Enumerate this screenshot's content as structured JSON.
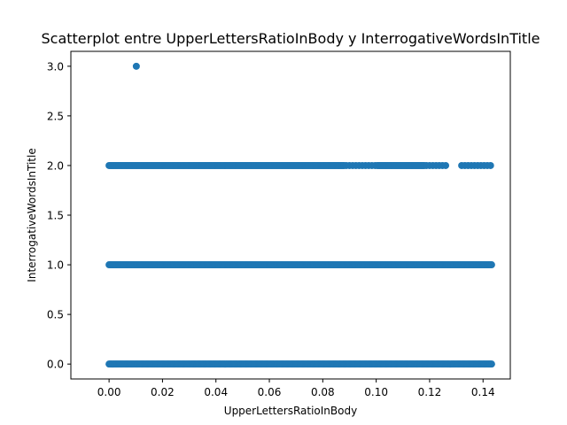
{
  "chart_data": {
    "type": "scatter",
    "title": "Scatterplot entre UpperLettersRatioInBody y InterrogativeWordsInTitle",
    "xlabel": "UpperLettersRatioInBody",
    "ylabel": "InterrogativeWordsInTitle",
    "xlim": [
      -0.0143,
      0.1502
    ],
    "ylim": [
      -0.15,
      3.15
    ],
    "xticks": [
      0.0,
      0.02,
      0.04,
      0.06,
      0.08,
      0.1,
      0.12,
      0.14
    ],
    "xtick_labels": [
      "0.00",
      "0.02",
      "0.04",
      "0.06",
      "0.08",
      "0.10",
      "0.12",
      "0.14"
    ],
    "yticks": [
      0.0,
      0.5,
      1.0,
      1.5,
      2.0,
      2.5,
      3.0
    ],
    "ytick_labels": [
      "0.0",
      "0.5",
      "1.0",
      "1.5",
      "2.0",
      "2.5",
      "3.0"
    ],
    "grid": false,
    "legend": "none",
    "marker_color": "#1f77b4",
    "series": [
      {
        "x_range": [
          0.0,
          0.1433
        ],
        "levels": [
          {
            "y": 0.0,
            "x_range": [
              0.0,
              0.1433
            ],
            "density": "continuous"
          },
          {
            "y": 1.0,
            "x_range": [
              0.0,
              0.1433
            ],
            "density": "continuous"
          },
          {
            "y": 2.0,
            "x_range": [
              0.0,
              0.1433
            ],
            "density": "continuous up to 0.088, sparse beyond"
          }
        ],
        "outliers": [
          {
            "x": 0.0102,
            "y": 3.0
          }
        ]
      }
    ]
  }
}
